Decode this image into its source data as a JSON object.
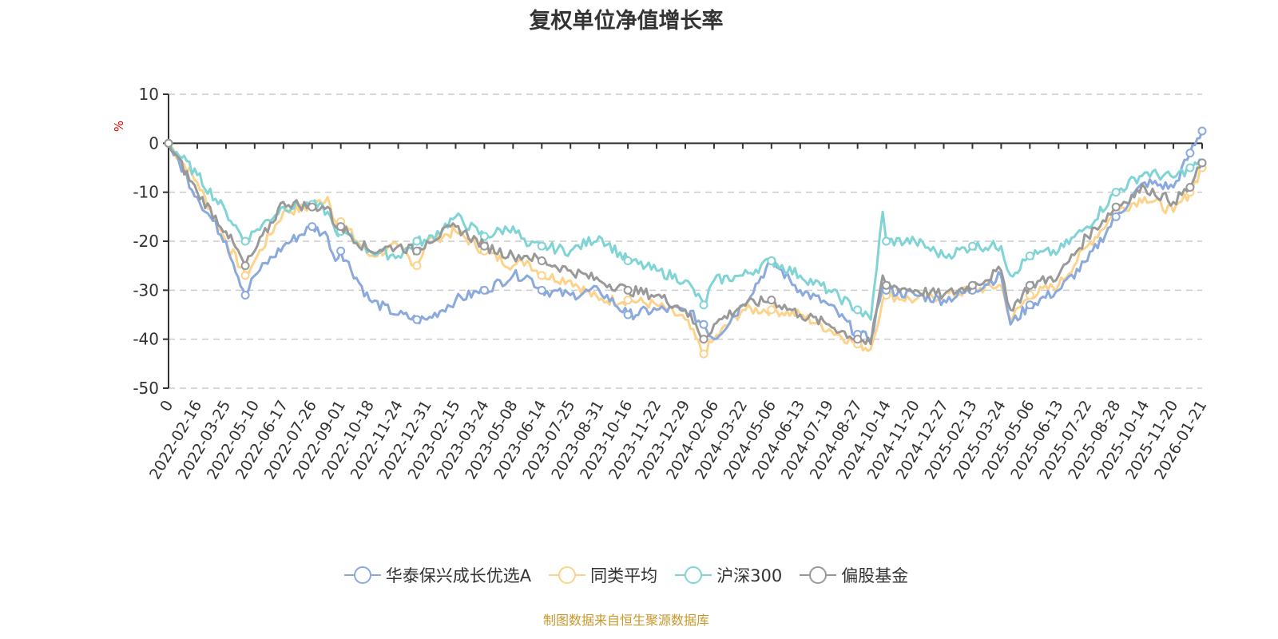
{
  "chart_data": {
    "type": "line",
    "title": "复权单位净值增长率",
    "ylabel": "%",
    "xlabel": "",
    "ylim": [
      -50,
      10
    ],
    "yticks": [
      10,
      0,
      -10,
      -20,
      -30,
      -40,
      -50
    ],
    "grid": true,
    "legend_position": "bottom",
    "x_tick_labels": [
      "0",
      "2022-02-16",
      "2022-03-25",
      "2022-05-10",
      "2022-06-17",
      "2022-07-26",
      "2022-09-01",
      "2022-10-18",
      "2022-11-24",
      "2022-12-31",
      "2023-02-15",
      "2023-03-24",
      "2023-05-08",
      "2023-06-14",
      "2023-07-25",
      "2023-08-31",
      "2023-10-16",
      "2023-11-22",
      "2023-12-29",
      "2024-02-06",
      "2024-03-22",
      "2024-05-06",
      "2024-06-13",
      "2024-07-19",
      "2024-08-27",
      "2024-10-14",
      "2024-11-20",
      "2024-12-27",
      "2025-02-13",
      "2025-03-24",
      "2025-05-06",
      "2025-06-13",
      "2025-07-22",
      "2025-08-28",
      "2025-10-14",
      "2025-11-20",
      "2026-01-21"
    ],
    "x": [
      "0",
      "2022-02-16",
      "2022-03-25",
      "2022-04-25",
      "2022-05-10",
      "2022-06-17",
      "2022-07-26",
      "2022-08-15",
      "2022-08-25",
      "2022-09-01",
      "2022-10-18",
      "2022-11-24",
      "2022-12-18",
      "2022-12-31",
      "2023-02-15",
      "2023-03-24",
      "2023-05-08",
      "2023-05-26",
      "2023-06-14",
      "2023-07-25",
      "2023-08-31",
      "2023-10-16",
      "2023-11-22",
      "2023-12-29",
      "2024-01-23",
      "2024-02-06",
      "2024-03-22",
      "2024-05-06",
      "2024-06-13",
      "2024-07-19",
      "2024-08-27",
      "2024-09-18",
      "2024-10-08",
      "2024-10-14",
      "2024-11-20",
      "2024-12-27",
      "2025-02-13",
      "2025-03-24",
      "2025-04-07",
      "2025-05-06",
      "2025-06-13",
      "2025-07-22",
      "2025-08-28",
      "2025-10-14",
      "2025-11-20",
      "2025-12-26",
      "2026-01-21"
    ],
    "series": [
      {
        "name": "华泰保兴成长优选A",
        "color": "#8aa9dc",
        "values": [
          0,
          -11,
          -20,
          -31,
          -27,
          -21,
          -17,
          -19,
          -24,
          -22,
          -32,
          -35,
          -36,
          -36,
          -32,
          -30,
          -27,
          -27,
          -30,
          -31,
          -30,
          -35,
          -34,
          -34,
          -37,
          -40,
          -33,
          -24,
          -30,
          -33,
          -39,
          -40,
          -29,
          -30,
          -31,
          -32,
          -30,
          -27,
          -37,
          -33,
          -30,
          -24,
          -15,
          -8,
          -9,
          -2,
          2.5
        ]
      },
      {
        "name": "同类平均",
        "color": "#fdd38c",
        "values": [
          0,
          -8,
          -20,
          -27,
          -24,
          -14,
          -13,
          -11,
          -16,
          -16,
          -23,
          -21,
          -25,
          -20,
          -18,
          -22,
          -25,
          -24,
          -27,
          -28,
          -32,
          -32,
          -33,
          -36,
          -43,
          -40,
          -34,
          -34,
          -35,
          -38,
          -41,
          -42,
          -32,
          -31,
          -32,
          -31,
          -30,
          -29,
          -36,
          -31,
          -29,
          -21,
          -14,
          -11,
          -14,
          -10,
          -5
        ]
      },
      {
        "name": "沪深300",
        "color": "#80d4d6",
        "values": [
          0,
          -6.5,
          -14,
          -20,
          -18,
          -13,
          -12.5,
          -14,
          -18,
          -18,
          -22,
          -23,
          -20,
          -20,
          -15,
          -19,
          -17,
          -21,
          -21,
          -22,
          -19,
          -24,
          -26,
          -28,
          -33,
          -28,
          -27,
          -24,
          -27,
          -30,
          -34,
          -36,
          -14,
          -20,
          -20,
          -23,
          -21,
          -21,
          -27,
          -23,
          -22,
          -17,
          -10,
          -6,
          -7,
          -5,
          -4
        ]
      },
      {
        "name": "偏股基金",
        "color": "#999999",
        "values": [
          0,
          -10,
          -18,
          -25,
          -22,
          -12,
          -13,
          -13,
          -17,
          -17,
          -22,
          -21,
          -22,
          -20,
          -17,
          -21,
          -23,
          -23,
          -24,
          -26,
          -28,
          -30,
          -31,
          -34,
          -40,
          -37,
          -33,
          -32,
          -35,
          -37,
          -40,
          -41,
          -27,
          -29,
          -30,
          -31,
          -29,
          -26,
          -34,
          -29,
          -27,
          -19,
          -13,
          -9,
          -12,
          -9,
          -4
        ]
      }
    ]
  },
  "source": "制图数据来自恒生聚源数据库"
}
